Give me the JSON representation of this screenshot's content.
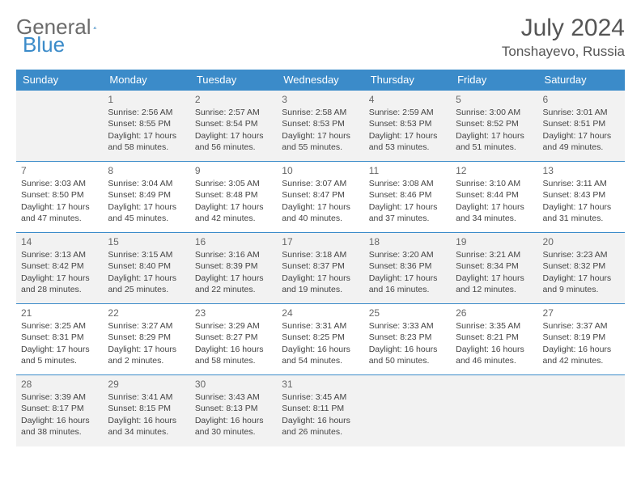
{
  "brand": {
    "part1": "General",
    "part2": "Blue"
  },
  "title": "July 2024",
  "location": "Tonshayevo, Russia",
  "colors": {
    "primary": "#3b8bc9",
    "header_text": "#ffffff",
    "row_alt": "#f2f2f2",
    "text": "#444444"
  },
  "weekdays": [
    "Sunday",
    "Monday",
    "Tuesday",
    "Wednesday",
    "Thursday",
    "Friday",
    "Saturday"
  ],
  "weeks": [
    [
      null,
      {
        "d": "1",
        "sr": "2:56 AM",
        "ss": "8:55 PM",
        "dl": "17 hours and 58 minutes."
      },
      {
        "d": "2",
        "sr": "2:57 AM",
        "ss": "8:54 PM",
        "dl": "17 hours and 56 minutes."
      },
      {
        "d": "3",
        "sr": "2:58 AM",
        "ss": "8:53 PM",
        "dl": "17 hours and 55 minutes."
      },
      {
        "d": "4",
        "sr": "2:59 AM",
        "ss": "8:53 PM",
        "dl": "17 hours and 53 minutes."
      },
      {
        "d": "5",
        "sr": "3:00 AM",
        "ss": "8:52 PM",
        "dl": "17 hours and 51 minutes."
      },
      {
        "d": "6",
        "sr": "3:01 AM",
        "ss": "8:51 PM",
        "dl": "17 hours and 49 minutes."
      }
    ],
    [
      {
        "d": "7",
        "sr": "3:03 AM",
        "ss": "8:50 PM",
        "dl": "17 hours and 47 minutes."
      },
      {
        "d": "8",
        "sr": "3:04 AM",
        "ss": "8:49 PM",
        "dl": "17 hours and 45 minutes."
      },
      {
        "d": "9",
        "sr": "3:05 AM",
        "ss": "8:48 PM",
        "dl": "17 hours and 42 minutes."
      },
      {
        "d": "10",
        "sr": "3:07 AM",
        "ss": "8:47 PM",
        "dl": "17 hours and 40 minutes."
      },
      {
        "d": "11",
        "sr": "3:08 AM",
        "ss": "8:46 PM",
        "dl": "17 hours and 37 minutes."
      },
      {
        "d": "12",
        "sr": "3:10 AM",
        "ss": "8:44 PM",
        "dl": "17 hours and 34 minutes."
      },
      {
        "d": "13",
        "sr": "3:11 AM",
        "ss": "8:43 PM",
        "dl": "17 hours and 31 minutes."
      }
    ],
    [
      {
        "d": "14",
        "sr": "3:13 AM",
        "ss": "8:42 PM",
        "dl": "17 hours and 28 minutes."
      },
      {
        "d": "15",
        "sr": "3:15 AM",
        "ss": "8:40 PM",
        "dl": "17 hours and 25 minutes."
      },
      {
        "d": "16",
        "sr": "3:16 AM",
        "ss": "8:39 PM",
        "dl": "17 hours and 22 minutes."
      },
      {
        "d": "17",
        "sr": "3:18 AM",
        "ss": "8:37 PM",
        "dl": "17 hours and 19 minutes."
      },
      {
        "d": "18",
        "sr": "3:20 AM",
        "ss": "8:36 PM",
        "dl": "17 hours and 16 minutes."
      },
      {
        "d": "19",
        "sr": "3:21 AM",
        "ss": "8:34 PM",
        "dl": "17 hours and 12 minutes."
      },
      {
        "d": "20",
        "sr": "3:23 AM",
        "ss": "8:32 PM",
        "dl": "17 hours and 9 minutes."
      }
    ],
    [
      {
        "d": "21",
        "sr": "3:25 AM",
        "ss": "8:31 PM",
        "dl": "17 hours and 5 minutes."
      },
      {
        "d": "22",
        "sr": "3:27 AM",
        "ss": "8:29 PM",
        "dl": "17 hours and 2 minutes."
      },
      {
        "d": "23",
        "sr": "3:29 AM",
        "ss": "8:27 PM",
        "dl": "16 hours and 58 minutes."
      },
      {
        "d": "24",
        "sr": "3:31 AM",
        "ss": "8:25 PM",
        "dl": "16 hours and 54 minutes."
      },
      {
        "d": "25",
        "sr": "3:33 AM",
        "ss": "8:23 PM",
        "dl": "16 hours and 50 minutes."
      },
      {
        "d": "26",
        "sr": "3:35 AM",
        "ss": "8:21 PM",
        "dl": "16 hours and 46 minutes."
      },
      {
        "d": "27",
        "sr": "3:37 AM",
        "ss": "8:19 PM",
        "dl": "16 hours and 42 minutes."
      }
    ],
    [
      {
        "d": "28",
        "sr": "3:39 AM",
        "ss": "8:17 PM",
        "dl": "16 hours and 38 minutes."
      },
      {
        "d": "29",
        "sr": "3:41 AM",
        "ss": "8:15 PM",
        "dl": "16 hours and 34 minutes."
      },
      {
        "d": "30",
        "sr": "3:43 AM",
        "ss": "8:13 PM",
        "dl": "16 hours and 30 minutes."
      },
      {
        "d": "31",
        "sr": "3:45 AM",
        "ss": "8:11 PM",
        "dl": "16 hours and 26 minutes."
      },
      null,
      null,
      null
    ]
  ],
  "labels": {
    "sunrise": "Sunrise:",
    "sunset": "Sunset:",
    "daylight": "Daylight:"
  }
}
